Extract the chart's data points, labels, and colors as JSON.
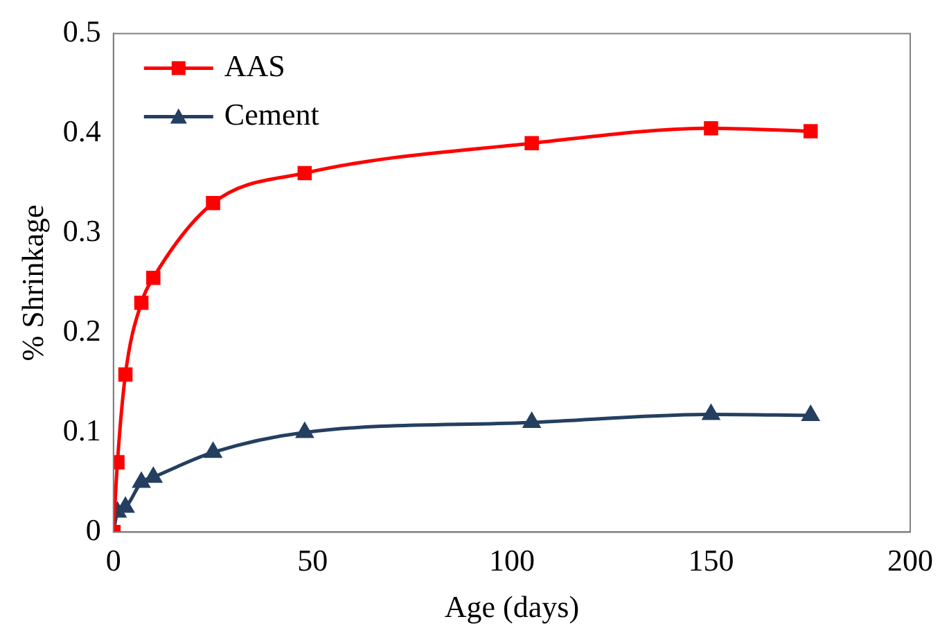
{
  "chart_data": {
    "type": "line",
    "xlabel": "Age (days)",
    "ylabel": "% Shrinkage",
    "xlim": [
      0,
      200
    ],
    "xticks": [
      0,
      50,
      100,
      150,
      200
    ],
    "ylim": [
      0,
      0.5
    ],
    "yticks": [
      0,
      0.1,
      0.2,
      0.3,
      0.4,
      0.5
    ],
    "grid": false,
    "legend": "top left",
    "series": [
      {
        "name": "AAS",
        "color": "#ff0000",
        "marker": "square",
        "x": [
          0,
          1,
          3,
          7,
          10,
          25,
          48,
          105,
          150,
          175
        ],
        "values": [
          0,
          0.07,
          0.158,
          0.23,
          0.255,
          0.33,
          0.36,
          0.39,
          0.405,
          0.402
        ]
      },
      {
        "name": "Cement",
        "color": "#243f60",
        "marker": "triangle",
        "x": [
          0,
          1,
          3,
          7,
          10,
          25,
          48,
          105,
          150,
          175
        ],
        "values": [
          0,
          0.02,
          0.025,
          0.05,
          0.055,
          0.08,
          0.1,
          0.11,
          0.118,
          0.117
        ]
      }
    ]
  }
}
